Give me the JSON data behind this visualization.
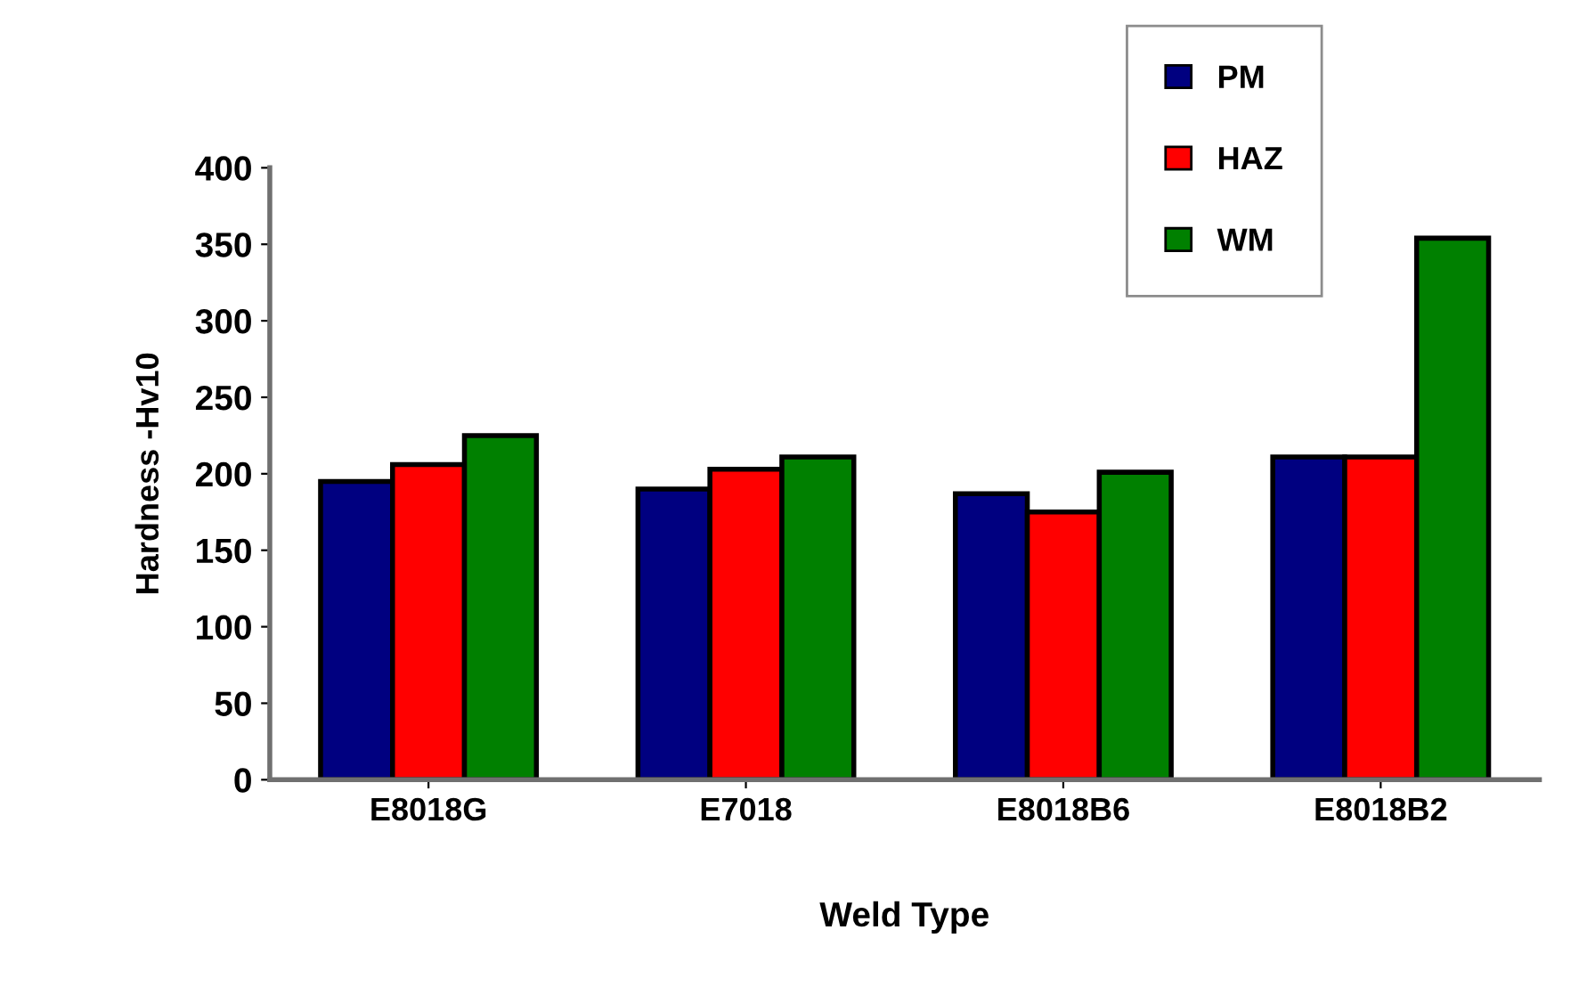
{
  "chart_data": {
    "type": "bar",
    "xlabel": "Weld Type",
    "ylabel": "Hardness -Hv10",
    "categories": [
      "E8018G",
      "E7018",
      "E8018B6",
      "E8018B2"
    ],
    "series": [
      {
        "name": "PM",
        "color": "#000080",
        "values": [
          195,
          190,
          187,
          211
        ]
      },
      {
        "name": "HAZ",
        "color": "#ff0000",
        "values": [
          206,
          203,
          175,
          211
        ]
      },
      {
        "name": "WM",
        "color": "#008000",
        "values": [
          225,
          211,
          201,
          354
        ]
      }
    ],
    "ylim": [
      0,
      400
    ],
    "yticks": [
      0,
      50,
      100,
      150,
      200,
      250,
      300,
      350,
      400
    ],
    "grid": false,
    "legend": "top right"
  }
}
